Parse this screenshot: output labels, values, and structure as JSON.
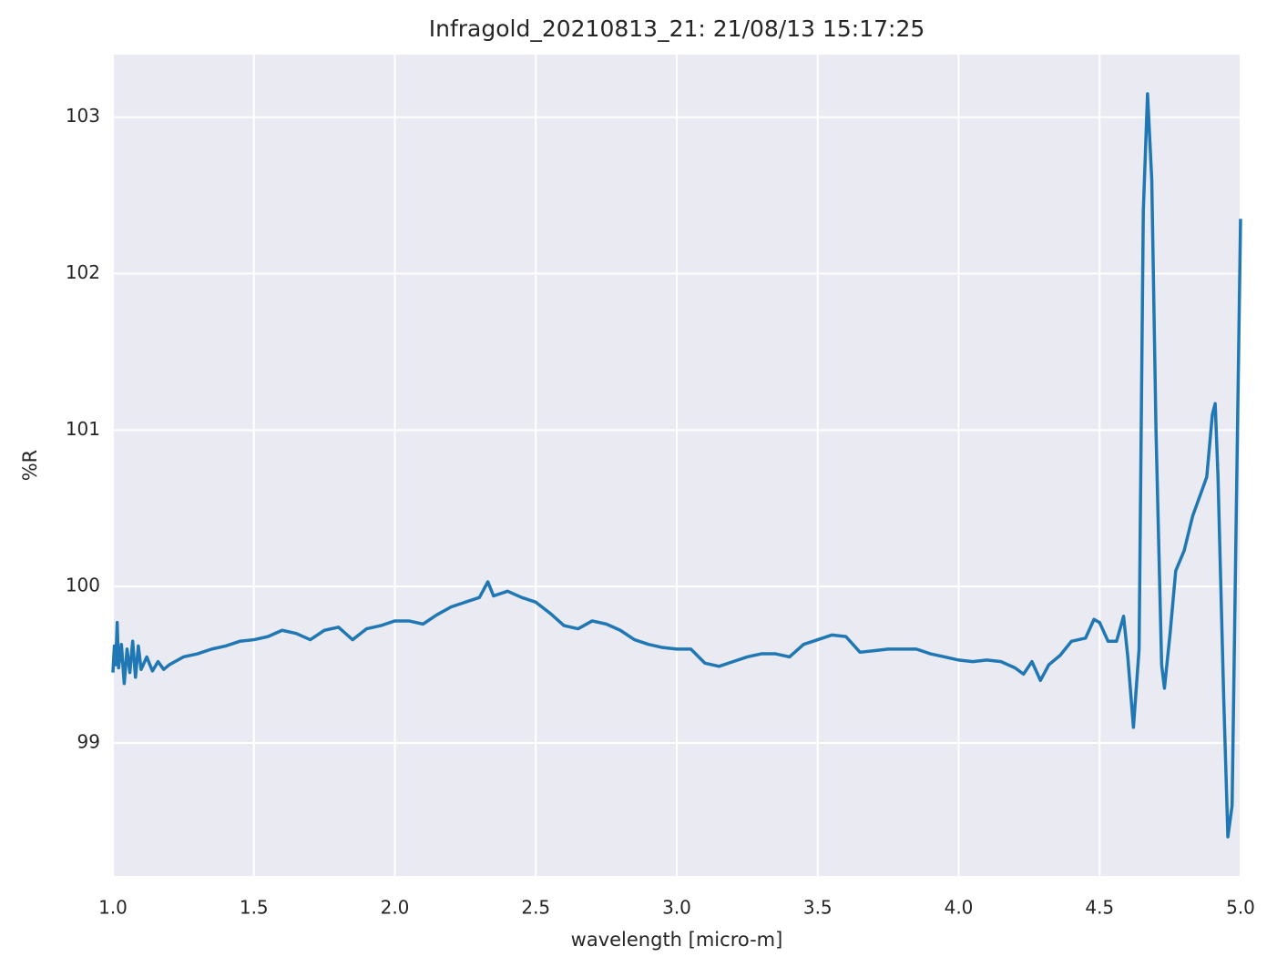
{
  "chart_data": {
    "type": "line",
    "title": "Infragold_20210813_21:  21/08/13 15:17:25",
    "xlabel": "wavelength [micro-m]",
    "ylabel": "%R",
    "xlim": [
      1,
      5
    ],
    "ylim": [
      98.15,
      103.4
    ],
    "xticks": [
      {
        "value": 1,
        "label": "1.0"
      },
      1.5,
      {
        "value": 2,
        "label": "2.0"
      },
      2.5,
      {
        "value": 3,
        "label": "3.0"
      },
      3.5,
      {
        "value": 4,
        "label": "4.0"
      },
      4.5,
      {
        "value": 5,
        "label": "5.0"
      }
    ],
    "yticks": [
      99,
      100,
      101,
      102,
      103
    ],
    "grid": true,
    "series": [
      {
        "color": "#1f77b4",
        "x": [
          1.0,
          1.005,
          1.01,
          1.015,
          1.02,
          1.03,
          1.04,
          1.05,
          1.06,
          1.07,
          1.08,
          1.09,
          1.1,
          1.12,
          1.14,
          1.16,
          1.18,
          1.2,
          1.25,
          1.3,
          1.35,
          1.4,
          1.45,
          1.5,
          1.55,
          1.6,
          1.65,
          1.7,
          1.75,
          1.8,
          1.85,
          1.9,
          1.95,
          2.0,
          2.05,
          2.1,
          2.15,
          2.2,
          2.25,
          2.3,
          2.33,
          2.35,
          2.4,
          2.45,
          2.5,
          2.55,
          2.6,
          2.65,
          2.7,
          2.75,
          2.8,
          2.85,
          2.9,
          2.95,
          3.0,
          3.05,
          3.1,
          3.15,
          3.2,
          3.25,
          3.3,
          3.35,
          3.4,
          3.45,
          3.5,
          3.55,
          3.6,
          3.65,
          3.7,
          3.75,
          3.8,
          3.85,
          3.9,
          3.95,
          4.0,
          4.05,
          4.1,
          4.15,
          4.2,
          4.23,
          4.26,
          4.29,
          4.32,
          4.36,
          4.4,
          4.45,
          4.48,
          4.5,
          4.53,
          4.56,
          4.585,
          4.6,
          4.62,
          4.64,
          4.655,
          4.67,
          4.685,
          4.7,
          4.72,
          4.73,
          4.75,
          4.77,
          4.8,
          4.83,
          4.86,
          4.88,
          4.9,
          4.91,
          4.92,
          4.94,
          4.955,
          4.97,
          4.985,
          5.0
        ],
        "values": [
          99.45,
          99.62,
          99.5,
          99.77,
          99.48,
          99.63,
          99.38,
          99.6,
          99.45,
          99.65,
          99.42,
          99.62,
          99.47,
          99.55,
          99.46,
          99.52,
          99.47,
          99.5,
          99.55,
          99.57,
          99.6,
          99.62,
          99.65,
          99.66,
          99.68,
          99.72,
          99.7,
          99.66,
          99.72,
          99.74,
          99.66,
          99.73,
          99.75,
          99.78,
          99.78,
          99.76,
          99.82,
          99.87,
          99.9,
          99.93,
          100.03,
          99.94,
          99.97,
          99.93,
          99.9,
          99.83,
          99.75,
          99.73,
          99.78,
          99.76,
          99.72,
          99.66,
          99.63,
          99.61,
          99.6,
          99.6,
          99.51,
          99.49,
          99.52,
          99.55,
          99.57,
          99.57,
          99.55,
          99.63,
          99.66,
          99.69,
          99.68,
          99.58,
          99.59,
          99.6,
          99.6,
          99.6,
          99.57,
          99.55,
          99.53,
          99.52,
          99.53,
          99.52,
          99.48,
          99.44,
          99.52,
          99.4,
          99.5,
          99.56,
          99.65,
          99.67,
          99.79,
          99.77,
          99.65,
          99.65,
          99.81,
          99.55,
          99.1,
          99.6,
          102.4,
          103.15,
          102.6,
          101.0,
          99.5,
          99.35,
          99.7,
          100.1,
          100.23,
          100.45,
          100.6,
          100.7,
          101.1,
          101.17,
          100.7,
          99.3,
          98.4,
          98.6,
          100.5,
          102.35
        ]
      }
    ]
  }
}
